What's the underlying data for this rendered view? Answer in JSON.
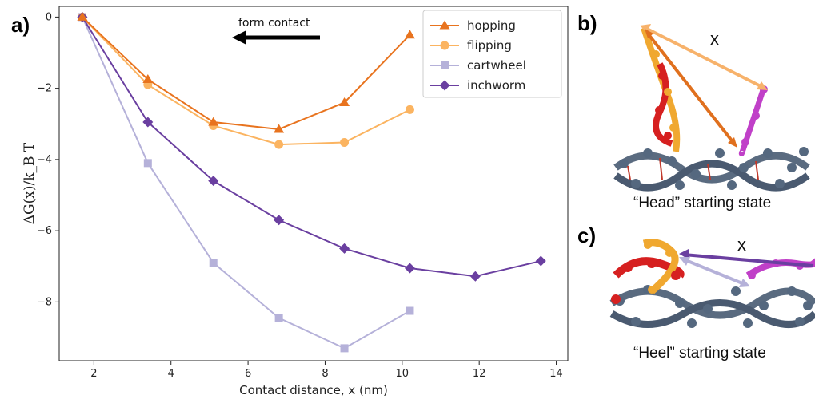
{
  "panels": {
    "a_label": "a)",
    "b_label": "b)",
    "c_label": "c)"
  },
  "annotation": {
    "text": "form contact"
  },
  "side_panels": {
    "b_caption": "“Head” starting state",
    "c_caption": "“Heel” starting state",
    "x_var": "x"
  },
  "chart_data": {
    "type": "line",
    "xlabel": "Contact distance, x (nm)",
    "ylabel": "ΔG(x)/k_B T",
    "xlim": [
      1.1,
      14.3
    ],
    "ylim": [
      -9.65,
      0.3
    ],
    "xticks": [
      2,
      4,
      6,
      8,
      10,
      12,
      14
    ],
    "yticks": [
      0,
      -2,
      -4,
      -6,
      -8
    ],
    "ytick_labels": [
      "0",
      "−2",
      "−4",
      "−6",
      "−8"
    ],
    "grid": false,
    "legend_position": "top-right",
    "series": [
      {
        "name": "hopping",
        "color": "#e8731e",
        "marker": "triangle",
        "x": [
          1.7,
          3.4,
          5.1,
          6.8,
          8.5,
          10.2
        ],
        "y": [
          0,
          -1.75,
          -2.95,
          -3.15,
          -2.4,
          -0.5
        ]
      },
      {
        "name": "flipping",
        "color": "#fbb461",
        "marker": "circle",
        "x": [
          1.7,
          3.4,
          5.1,
          6.8,
          8.5,
          10.2
        ],
        "y": [
          0,
          -1.9,
          -3.05,
          -3.58,
          -3.52,
          -2.6
        ]
      },
      {
        "name": "cartwheel",
        "color": "#b5b1d9",
        "marker": "square",
        "x": [
          1.7,
          3.4,
          5.1,
          6.8,
          8.5,
          10.2
        ],
        "y": [
          0,
          -4.1,
          -6.9,
          -8.45,
          -9.3,
          -8.25
        ]
      },
      {
        "name": "inchworm",
        "color": "#6a3fa0",
        "marker": "diamond",
        "x": [
          1.7,
          3.4,
          5.1,
          6.8,
          8.5,
          10.2,
          11.9,
          13.6
        ],
        "y": [
          0,
          -2.95,
          -4.6,
          -5.7,
          -6.5,
          -7.05,
          -7.28,
          -6.85
        ]
      }
    ]
  }
}
